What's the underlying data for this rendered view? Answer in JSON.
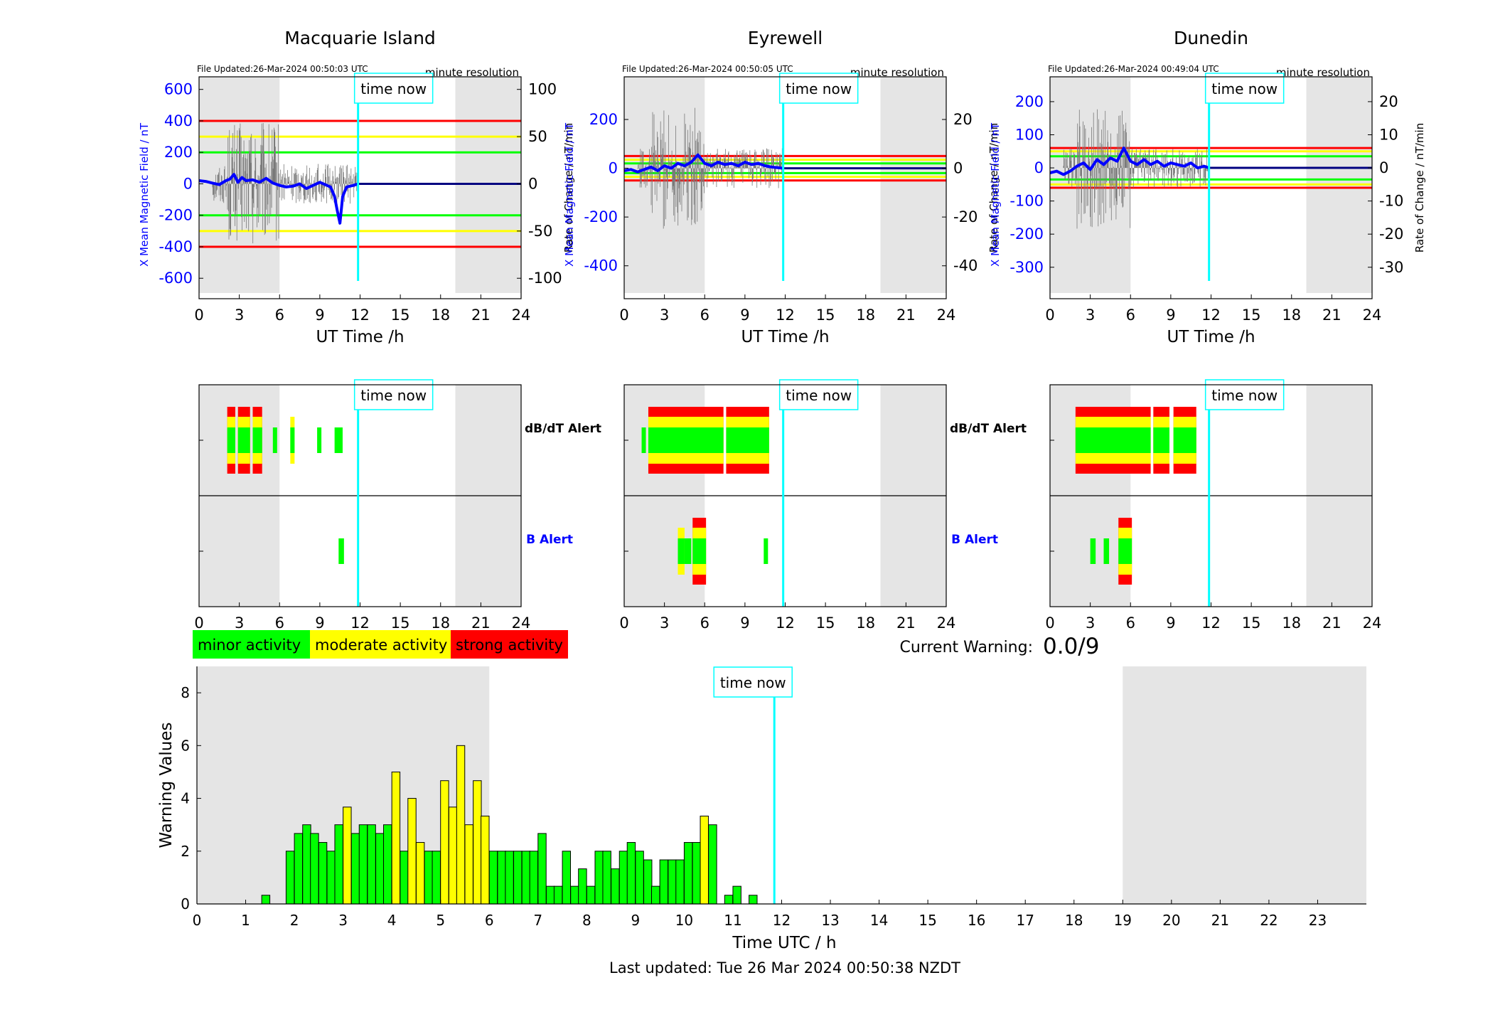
{
  "last_updated": "Last updated: Tue 26 Mar 2024 00:50:38 NZDT",
  "current_warning_label": "Current Warning:",
  "current_warning_value": "0.0/9",
  "time_now_label": "time now",
  "time_now_hour": 11.85,
  "legend": [
    {
      "label": "minor activity",
      "color": "#00ff00"
    },
    {
      "label": "moderate activity",
      "color": "#ffff00"
    },
    {
      "label": "strong activity",
      "color": "#ff0000"
    }
  ],
  "colors": {
    "axis_blue": "#0000ff",
    "time_now": "#00ffff",
    "night_shade": "#e5e5e5",
    "minor": "#00ff00",
    "moderate": "#ffff00",
    "strong": "#ff0000"
  },
  "alert_labels": {
    "dbdt": "dB/dT Alert",
    "b": "B Alert"
  },
  "stations": [
    {
      "name": "Macquarie Island",
      "file_updated": "File Updated:26-Mar-2024 00:50:03 UTC",
      "resolution": "minute resolution",
      "xlabel": "UT Time /h",
      "left_label": "X Mean Magnetic Field / nT",
      "right_label": "Rate of Change / nT/min",
      "left_ticks": [
        600,
        400,
        200,
        0,
        -200,
        -400,
        -600
      ],
      "right_ticks": [
        100,
        50,
        0,
        -50,
        -100
      ],
      "left_range": [
        -730,
        680
      ],
      "night_shade_hours": [
        [
          0,
          6
        ],
        [
          19.1,
          24
        ]
      ],
      "threshold_lines": [
        {
          "value": 400,
          "color": "red"
        },
        {
          "value": 300,
          "color": "yellow"
        },
        {
          "value": 200,
          "color": "green"
        },
        {
          "value": -200,
          "color": "green"
        },
        {
          "value": -300,
          "color": "yellow"
        },
        {
          "value": -400,
          "color": "red"
        }
      ],
      "field_trace": [
        [
          0,
          20
        ],
        [
          0.5,
          15
        ],
        [
          1,
          5
        ],
        [
          1.5,
          -5
        ],
        [
          2,
          20
        ],
        [
          2.3,
          30
        ],
        [
          2.6,
          60
        ],
        [
          2.9,
          10
        ],
        [
          3.2,
          40
        ],
        [
          3.5,
          20
        ],
        [
          4,
          25
        ],
        [
          4.5,
          10
        ],
        [
          5,
          35
        ],
        [
          5.5,
          5
        ],
        [
          6,
          -10
        ],
        [
          6.5,
          -20
        ],
        [
          7,
          -15
        ],
        [
          7.5,
          0
        ],
        [
          8,
          -30
        ],
        [
          8.5,
          -10
        ],
        [
          9,
          10
        ],
        [
          9.4,
          -5
        ],
        [
          9.8,
          -20
        ],
        [
          10.1,
          -80
        ],
        [
          10.3,
          -170
        ],
        [
          10.5,
          -250
        ],
        [
          10.7,
          -80
        ],
        [
          11,
          -20
        ],
        [
          11.5,
          -10
        ],
        [
          11.85,
          0
        ]
      ],
      "dbdt_alert": [
        [
          2.1,
          2.7,
          "strong"
        ],
        [
          2.9,
          3.8,
          "strong"
        ],
        [
          4,
          4.7,
          "strong"
        ],
        [
          5.5,
          5.8,
          "minor"
        ],
        [
          6.8,
          7.1,
          "moderate"
        ],
        [
          8.8,
          9.1,
          "minor"
        ],
        [
          10.1,
          10.7,
          "minor"
        ]
      ],
      "b_alert": [
        [
          10.4,
          10.8,
          "minor"
        ]
      ]
    },
    {
      "name": "Eyrewell",
      "file_updated": "File Updated:26-Mar-2024 00:50:05 UTC",
      "resolution": "minute resolution",
      "xlabel": "UT Time /h",
      "left_label": "X Mean Magnetic Field / nT",
      "right_label": "Rate of Change / nT/min",
      "left_ticks": [
        200,
        0,
        -200,
        -400
      ],
      "right_ticks": [
        20,
        0,
        -20,
        -40
      ],
      "left_range": [
        -535,
        375
      ],
      "night_shade_hours": [
        [
          0,
          6
        ],
        [
          19.1,
          24
        ]
      ],
      "threshold_lines": [
        {
          "value": 50,
          "color": "red"
        },
        {
          "value": 35,
          "color": "yellow"
        },
        {
          "value": 20,
          "color": "green"
        },
        {
          "value": -20,
          "color": "green"
        },
        {
          "value": -35,
          "color": "yellow"
        },
        {
          "value": -50,
          "color": "red"
        }
      ],
      "field_trace": [
        [
          0,
          -10
        ],
        [
          0.5,
          -5
        ],
        [
          1,
          -15
        ],
        [
          1.5,
          -5
        ],
        [
          2,
          5
        ],
        [
          2.5,
          -10
        ],
        [
          3,
          10
        ],
        [
          3.5,
          0
        ],
        [
          4,
          20
        ],
        [
          4.5,
          10
        ],
        [
          5,
          25
        ],
        [
          5.5,
          55
        ],
        [
          6,
          20
        ],
        [
          6.5,
          10
        ],
        [
          7,
          25
        ],
        [
          7.5,
          15
        ],
        [
          8,
          20
        ],
        [
          8.5,
          10
        ],
        [
          9,
          25
        ],
        [
          9.5,
          15
        ],
        [
          10,
          20
        ],
        [
          10.5,
          10
        ],
        [
          11,
          5
        ],
        [
          11.85,
          0
        ]
      ],
      "dbdt_alert": [
        [
          1.8,
          7.4,
          "strong"
        ],
        [
          7.6,
          10.8,
          "strong"
        ],
        [
          1.3,
          1.6,
          "minor"
        ]
      ],
      "b_alert": [
        [
          4,
          4.5,
          "moderate"
        ],
        [
          4.5,
          5,
          "minor"
        ],
        [
          5.1,
          6.1,
          "strong"
        ],
        [
          10.4,
          10.7,
          "minor"
        ]
      ]
    },
    {
      "name": "Dunedin",
      "file_updated": "File Updated:26-Mar-2024 00:49:04 UTC",
      "resolution": "minute resolution",
      "xlabel": "UT Time /h",
      "left_label": "X Mean Magnetic Field / nT",
      "right_label": "Rate of Change / nT/min",
      "left_ticks": [
        200,
        100,
        0,
        -100,
        -200,
        -300
      ],
      "right_ticks": [
        20,
        10,
        0,
        -10,
        -20,
        -30
      ],
      "left_range": [
        -395,
        275
      ],
      "night_shade_hours": [
        [
          0,
          6
        ],
        [
          19.1,
          24
        ]
      ],
      "threshold_lines": [
        {
          "value": 60,
          "color": "red"
        },
        {
          "value": 50,
          "color": "yellow"
        },
        {
          "value": 35,
          "color": "green"
        },
        {
          "value": -35,
          "color": "green"
        },
        {
          "value": -50,
          "color": "yellow"
        },
        {
          "value": -60,
          "color": "red"
        }
      ],
      "field_trace": [
        [
          0,
          -15
        ],
        [
          0.5,
          -10
        ],
        [
          1,
          -20
        ],
        [
          1.5,
          -10
        ],
        [
          2,
          5
        ],
        [
          2.5,
          15
        ],
        [
          3,
          -5
        ],
        [
          3.5,
          25
        ],
        [
          4,
          10
        ],
        [
          4.5,
          30
        ],
        [
          5,
          20
        ],
        [
          5.5,
          60
        ],
        [
          6,
          20
        ],
        [
          6.5,
          10
        ],
        [
          7,
          25
        ],
        [
          7.5,
          10
        ],
        [
          8,
          20
        ],
        [
          8.5,
          5
        ],
        [
          9,
          15
        ],
        [
          9.5,
          10
        ],
        [
          10,
          5
        ],
        [
          10.5,
          15
        ],
        [
          11,
          0
        ],
        [
          11.5,
          5
        ],
        [
          11.85,
          0
        ]
      ],
      "dbdt_alert": [
        [
          1.9,
          7.5,
          "strong"
        ],
        [
          7.7,
          8.9,
          "strong"
        ],
        [
          9.2,
          10.9,
          "strong"
        ]
      ],
      "b_alert": [
        [
          3,
          3.4,
          "minor"
        ],
        [
          4,
          4.4,
          "minor"
        ],
        [
          5.1,
          6.1,
          "strong"
        ]
      ]
    }
  ],
  "chart_data": {
    "type": "bar",
    "xlabel": "Time UTC / h",
    "ylabel": "Warning Values",
    "xlim": [
      0,
      24
    ],
    "ylim": [
      0,
      9
    ],
    "x_ticks": [
      0,
      1,
      2,
      3,
      4,
      5,
      6,
      7,
      8,
      9,
      10,
      11,
      12,
      13,
      14,
      15,
      16,
      17,
      18,
      19,
      20,
      21,
      22,
      23
    ],
    "y_ticks": [
      0,
      2,
      4,
      6,
      8
    ],
    "night_shade_hours": [
      [
        0,
        6
      ],
      [
        19,
        24
      ]
    ],
    "bin_width_h": 0.1667,
    "bars": [
      {
        "x": 1.33,
        "value": 0.33,
        "level": "minor"
      },
      {
        "x": 1.83,
        "value": 2.0,
        "level": "minor"
      },
      {
        "x": 2.0,
        "value": 2.67,
        "level": "minor"
      },
      {
        "x": 2.17,
        "value": 3.0,
        "level": "minor"
      },
      {
        "x": 2.33,
        "value": 2.67,
        "level": "minor"
      },
      {
        "x": 2.5,
        "value": 2.33,
        "level": "minor"
      },
      {
        "x": 2.67,
        "value": 2.0,
        "level": "minor"
      },
      {
        "x": 2.83,
        "value": 3.0,
        "level": "minor"
      },
      {
        "x": 3.0,
        "value": 3.67,
        "level": "moderate"
      },
      {
        "x": 3.17,
        "value": 2.67,
        "level": "minor"
      },
      {
        "x": 3.33,
        "value": 3.0,
        "level": "minor"
      },
      {
        "x": 3.5,
        "value": 3.0,
        "level": "minor"
      },
      {
        "x": 3.67,
        "value": 2.67,
        "level": "minor"
      },
      {
        "x": 3.83,
        "value": 3.0,
        "level": "minor"
      },
      {
        "x": 4.0,
        "value": 5.0,
        "level": "moderate"
      },
      {
        "x": 4.17,
        "value": 2.0,
        "level": "minor"
      },
      {
        "x": 4.33,
        "value": 4.0,
        "level": "moderate"
      },
      {
        "x": 4.5,
        "value": 2.33,
        "level": "moderate"
      },
      {
        "x": 4.67,
        "value": 2.0,
        "level": "minor"
      },
      {
        "x": 4.83,
        "value": 2.0,
        "level": "minor"
      },
      {
        "x": 5.0,
        "value": 4.67,
        "level": "moderate"
      },
      {
        "x": 5.17,
        "value": 3.67,
        "level": "moderate"
      },
      {
        "x": 5.33,
        "value": 6.0,
        "level": "moderate"
      },
      {
        "x": 5.5,
        "value": 3.0,
        "level": "moderate"
      },
      {
        "x": 5.67,
        "value": 4.67,
        "level": "moderate"
      },
      {
        "x": 5.83,
        "value": 3.33,
        "level": "moderate"
      },
      {
        "x": 6.0,
        "value": 2.0,
        "level": "minor"
      },
      {
        "x": 6.17,
        "value": 2.0,
        "level": "minor"
      },
      {
        "x": 6.33,
        "value": 2.0,
        "level": "minor"
      },
      {
        "x": 6.5,
        "value": 2.0,
        "level": "minor"
      },
      {
        "x": 6.67,
        "value": 2.0,
        "level": "minor"
      },
      {
        "x": 6.83,
        "value": 2.0,
        "level": "minor"
      },
      {
        "x": 7.0,
        "value": 2.67,
        "level": "minor"
      },
      {
        "x": 7.17,
        "value": 0.67,
        "level": "minor"
      },
      {
        "x": 7.33,
        "value": 0.67,
        "level": "minor"
      },
      {
        "x": 7.5,
        "value": 2.0,
        "level": "minor"
      },
      {
        "x": 7.67,
        "value": 0.67,
        "level": "minor"
      },
      {
        "x": 7.83,
        "value": 1.33,
        "level": "minor"
      },
      {
        "x": 8.0,
        "value": 0.67,
        "level": "minor"
      },
      {
        "x": 8.17,
        "value": 2.0,
        "level": "minor"
      },
      {
        "x": 8.33,
        "value": 2.0,
        "level": "minor"
      },
      {
        "x": 8.5,
        "value": 1.33,
        "level": "minor"
      },
      {
        "x": 8.67,
        "value": 2.0,
        "level": "minor"
      },
      {
        "x": 8.83,
        "value": 2.33,
        "level": "minor"
      },
      {
        "x": 9.0,
        "value": 2.0,
        "level": "minor"
      },
      {
        "x": 9.17,
        "value": 1.67,
        "level": "minor"
      },
      {
        "x": 9.33,
        "value": 0.67,
        "level": "minor"
      },
      {
        "x": 9.5,
        "value": 1.67,
        "level": "minor"
      },
      {
        "x": 9.67,
        "value": 1.67,
        "level": "minor"
      },
      {
        "x": 9.83,
        "value": 1.67,
        "level": "minor"
      },
      {
        "x": 10.0,
        "value": 2.33,
        "level": "minor"
      },
      {
        "x": 10.17,
        "value": 2.33,
        "level": "minor"
      },
      {
        "x": 10.33,
        "value": 3.33,
        "level": "moderate"
      },
      {
        "x": 10.5,
        "value": 3.0,
        "level": "minor"
      },
      {
        "x": 10.83,
        "value": 0.33,
        "level": "minor"
      },
      {
        "x": 11.0,
        "value": 0.67,
        "level": "minor"
      },
      {
        "x": 11.33,
        "value": 0.33,
        "level": "minor"
      }
    ]
  }
}
